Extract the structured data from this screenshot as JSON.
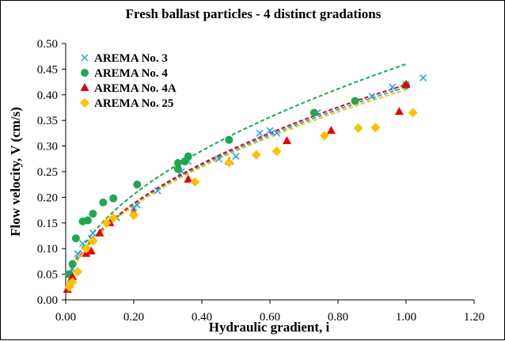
{
  "chart_data": {
    "type": "scatter",
    "title": "Fresh ballast particles - 4 distinct gradations",
    "xlabel": "Hydraulic gradient, i",
    "ylabel": "Flow velocity, V (cm/s)",
    "xlim": [
      0,
      1.2
    ],
    "ylim": [
      0,
      0.5
    ],
    "x_ticks": [
      "0.00",
      "0.20",
      "0.40",
      "0.60",
      "0.80",
      "1.00",
      "1.20"
    ],
    "y_ticks": [
      "0.00",
      "0.05",
      "0.10",
      "0.15",
      "0.20",
      "0.25",
      "0.30",
      "0.35",
      "0.40",
      "0.45",
      "0.50"
    ],
    "grid": false,
    "legend_position": "top-left",
    "series": [
      {
        "name": "AREMA No. 3",
        "color": "#1ea7e0",
        "marker": "x",
        "points": [
          [
            0.01,
            0.05
          ],
          [
            0.02,
            0.06
          ],
          [
            0.035,
            0.09
          ],
          [
            0.05,
            0.11
          ],
          [
            0.075,
            0.12
          ],
          [
            0.08,
            0.13
          ],
          [
            0.13,
            0.15
          ],
          [
            0.15,
            0.16
          ],
          [
            0.2,
            0.18
          ],
          [
            0.21,
            0.185
          ],
          [
            0.27,
            0.213
          ],
          [
            0.34,
            0.25
          ],
          [
            0.36,
            0.27
          ],
          [
            0.45,
            0.275
          ],
          [
            0.5,
            0.28
          ],
          [
            0.57,
            0.325
          ],
          [
            0.6,
            0.33
          ],
          [
            0.62,
            0.325
          ],
          [
            0.74,
            0.365
          ],
          [
            0.9,
            0.397
          ],
          [
            0.96,
            0.415
          ],
          [
            1.0,
            0.42
          ],
          [
            1.05,
            0.433
          ]
        ],
        "trend": {
          "a": 0.415,
          "b": 0.5,
          "c": 0.0
        }
      },
      {
        "name": "AREMA No. 4",
        "color": "#1fa84f",
        "marker": "circle",
        "points": [
          [
            0.01,
            0.05
          ],
          [
            0.02,
            0.07
          ],
          [
            0.03,
            0.12
          ],
          [
            0.05,
            0.153
          ],
          [
            0.065,
            0.155
          ],
          [
            0.08,
            0.168
          ],
          [
            0.11,
            0.19
          ],
          [
            0.14,
            0.198
          ],
          [
            0.21,
            0.225
          ],
          [
            0.33,
            0.255
          ],
          [
            0.33,
            0.267
          ],
          [
            0.35,
            0.27
          ],
          [
            0.36,
            0.28
          ],
          [
            0.48,
            0.312
          ],
          [
            0.73,
            0.365
          ],
          [
            0.85,
            0.388
          ],
          [
            1.0,
            0.418
          ]
        ],
        "trend": {
          "a": 0.46,
          "b": 0.5,
          "c": 0.0
        }
      },
      {
        "name": "AREMA No. 4A",
        "color": "#e60000",
        "marker": "triangle",
        "points": [
          [
            0.005,
            0.02
          ],
          [
            0.02,
            0.045
          ],
          [
            0.06,
            0.09
          ],
          [
            0.075,
            0.095
          ],
          [
            0.1,
            0.13
          ],
          [
            0.13,
            0.15
          ],
          [
            0.2,
            0.17
          ],
          [
            0.36,
            0.235
          ],
          [
            0.48,
            0.27
          ],
          [
            0.65,
            0.31
          ],
          [
            0.78,
            0.33
          ],
          [
            0.98,
            0.367
          ],
          [
            1.0,
            0.42
          ]
        ],
        "trend": {
          "a": 0.42,
          "b": 0.5,
          "c": 0.0
        }
      },
      {
        "name": "AREMA No. 25",
        "color": "#ffc000",
        "marker": "diamond",
        "points": [
          [
            0.01,
            0.025
          ],
          [
            0.02,
            0.035
          ],
          [
            0.035,
            0.055
          ],
          [
            0.06,
            0.1
          ],
          [
            0.08,
            0.115
          ],
          [
            0.12,
            0.15
          ],
          [
            0.14,
            0.16
          ],
          [
            0.2,
            0.165
          ],
          [
            0.38,
            0.23
          ],
          [
            0.48,
            0.268
          ],
          [
            0.56,
            0.283
          ],
          [
            0.62,
            0.29
          ],
          [
            0.76,
            0.32
          ],
          [
            0.86,
            0.335
          ],
          [
            0.91,
            0.336
          ],
          [
            1.02,
            0.365
          ]
        ],
        "trend": {
          "a": 0.41,
          "b": 0.5,
          "c": 0.0
        }
      }
    ]
  }
}
